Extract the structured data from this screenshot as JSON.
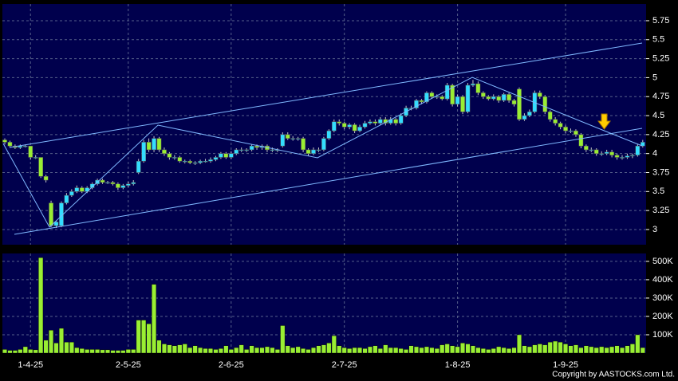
{
  "chart_data": [
    {
      "type": "candlestick",
      "categories": [
        null,
        null,
        null,
        null,
        null,
        "1-4-25",
        null,
        null,
        null,
        null,
        null,
        null,
        null,
        null,
        null,
        null,
        null,
        null,
        null,
        null,
        null,
        null,
        null,
        null,
        "2-5-25",
        null,
        null,
        null,
        null,
        null,
        null,
        null,
        null,
        null,
        null,
        null,
        null,
        null,
        null,
        null,
        null,
        null,
        null,
        null,
        "2-6-25",
        null,
        null,
        null,
        null,
        null,
        null,
        null,
        null,
        null,
        null,
        null,
        null,
        null,
        null,
        null,
        null,
        null,
        null,
        null,
        null,
        null,
        "2-7-25",
        null,
        null,
        null,
        null,
        null,
        null,
        null,
        null,
        null,
        null,
        null,
        null,
        null,
        null,
        null,
        null,
        null,
        null,
        null,
        null,
        null,
        "1-8-25",
        null,
        null,
        null,
        null,
        null,
        null,
        null,
        null,
        null,
        null,
        null,
        null,
        null,
        null,
        null,
        null,
        null,
        null,
        null,
        null,
        "1-9-25",
        null,
        null,
        null,
        null,
        null,
        null,
        null,
        null,
        null,
        null,
        null,
        null,
        null,
        null,
        null
      ],
      "open": [
        4.18,
        4.15,
        4.1,
        4.08,
        4.1,
        4.1,
        3.95,
        3.95,
        3.7,
        3.35,
        3.05,
        3.05,
        3.35,
        3.45,
        3.5,
        3.55,
        3.5,
        3.55,
        3.6,
        3.65,
        3.62,
        3.62,
        3.6,
        3.55,
        3.58,
        3.6,
        3.75,
        3.9,
        4.15,
        4.05,
        4.2,
        4.05,
        4.0,
        3.95,
        3.95,
        3.9,
        3.9,
        3.88,
        3.88,
        3.9,
        3.9,
        3.92,
        3.95,
        4.0,
        3.95,
        4.0,
        4.05,
        4.05,
        4.05,
        4.1,
        4.08,
        4.1,
        4.05,
        4.05,
        4.1,
        4.25,
        4.2,
        4.2,
        4.2,
        4.05,
        4.0,
        4.05,
        4.05,
        4.2,
        4.3,
        4.42,
        4.4,
        4.35,
        4.38,
        4.3,
        4.35,
        4.4,
        4.42,
        4.4,
        4.45,
        4.4,
        4.45,
        4.4,
        4.5,
        4.6,
        4.6,
        4.7,
        4.68,
        4.8,
        4.75,
        4.75,
        4.72,
        4.9,
        4.65,
        4.75,
        4.55,
        4.9,
        4.92,
        4.8,
        4.75,
        4.72,
        4.75,
        4.7,
        4.78,
        4.7,
        4.85,
        4.45,
        4.5,
        4.55,
        4.8,
        4.75,
        4.55,
        4.45,
        4.4,
        4.35,
        4.3,
        4.3,
        4.25,
        4.1,
        4.05,
        4.05,
        4.0,
        4.0,
        4.02,
        3.98,
        3.95,
        3.95,
        3.97,
        3.98,
        4.1
      ],
      "high": [
        4.2,
        4.17,
        4.12,
        4.12,
        4.12,
        4.1,
        3.98,
        3.95,
        3.72,
        3.38,
        3.12,
        3.37,
        3.48,
        3.53,
        3.58,
        3.57,
        3.57,
        3.62,
        3.67,
        3.67,
        3.64,
        3.64,
        3.62,
        3.6,
        3.63,
        3.65,
        3.93,
        4.18,
        4.2,
        4.23,
        4.22,
        4.08,
        4.02,
        3.98,
        3.97,
        3.92,
        3.92,
        3.9,
        3.92,
        3.93,
        3.95,
        3.97,
        4.02,
        4.02,
        4.03,
        4.07,
        4.08,
        4.07,
        4.12,
        4.12,
        4.12,
        4.12,
        4.08,
        4.07,
        4.28,
        4.28,
        4.23,
        4.22,
        4.22,
        4.07,
        4.08,
        4.08,
        4.22,
        4.32,
        4.45,
        4.45,
        4.42,
        4.4,
        4.4,
        4.38,
        4.43,
        4.45,
        4.45,
        4.48,
        4.48,
        4.48,
        4.47,
        4.53,
        4.63,
        4.63,
        4.72,
        4.72,
        4.82,
        4.82,
        4.78,
        4.77,
        4.93,
        4.92,
        4.78,
        4.77,
        4.93,
        4.97,
        4.95,
        4.82,
        4.77,
        4.78,
        4.77,
        4.8,
        4.8,
        4.72,
        4.87,
        4.53,
        4.58,
        4.83,
        4.83,
        4.77,
        4.57,
        4.48,
        4.42,
        4.37,
        4.33,
        4.32,
        4.27,
        4.12,
        4.08,
        4.07,
        4.03,
        4.05,
        4.05,
        4.0,
        3.98,
        4.0,
        4.0,
        4.13,
        4.18
      ],
      "low": [
        4.12,
        4.08,
        4.06,
        4.06,
        4.08,
        3.92,
        3.93,
        3.68,
        3.62,
        3.03,
        3.02,
        3.03,
        3.33,
        3.43,
        3.48,
        3.48,
        3.48,
        3.53,
        3.58,
        3.6,
        3.6,
        3.58,
        3.52,
        3.53,
        3.56,
        3.58,
        3.73,
        3.88,
        4.02,
        4.02,
        4.02,
        3.97,
        3.92,
        3.92,
        3.88,
        3.87,
        3.86,
        3.85,
        3.86,
        3.88,
        3.88,
        3.9,
        3.93,
        3.93,
        3.93,
        3.98,
        4.02,
        4.02,
        4.03,
        4.05,
        4.05,
        4.02,
        4.02,
        4.02,
        4.08,
        4.18,
        4.17,
        4.17,
        4.02,
        3.97,
        3.98,
        4.02,
        4.03,
        4.18,
        4.28,
        4.37,
        4.32,
        4.32,
        4.27,
        4.28,
        4.33,
        4.38,
        4.37,
        4.38,
        4.37,
        4.38,
        4.37,
        4.38,
        4.48,
        4.57,
        4.58,
        4.65,
        4.66,
        4.72,
        4.72,
        4.7,
        4.7,
        4.62,
        4.62,
        4.52,
        4.53,
        4.88,
        4.77,
        4.72,
        4.7,
        4.7,
        4.67,
        4.68,
        4.67,
        4.62,
        4.43,
        4.43,
        4.48,
        4.53,
        4.72,
        4.52,
        4.42,
        4.37,
        4.32,
        4.27,
        4.27,
        4.22,
        4.07,
        4.02,
        4.02,
        3.97,
        3.97,
        3.98,
        3.95,
        3.92,
        3.92,
        3.93,
        3.94,
        3.96,
        4.08
      ],
      "close": [
        4.15,
        4.1,
        4.08,
        4.1,
        4.1,
        3.95,
        3.95,
        3.7,
        3.65,
        3.05,
        3.1,
        3.35,
        3.45,
        3.5,
        3.55,
        3.5,
        3.55,
        3.6,
        3.65,
        3.62,
        3.62,
        3.6,
        3.55,
        3.58,
        3.6,
        3.62,
        3.9,
        4.15,
        4.05,
        4.2,
        4.05,
        4.0,
        3.95,
        3.95,
        3.9,
        3.9,
        3.88,
        3.88,
        3.9,
        3.9,
        3.92,
        3.95,
        4.0,
        3.95,
        4.0,
        4.05,
        4.05,
        4.05,
        4.1,
        4.08,
        4.1,
        4.05,
        4.05,
        4.05,
        4.25,
        4.2,
        4.2,
        4.2,
        4.05,
        4.0,
        4.05,
        4.05,
        4.2,
        4.3,
        4.42,
        4.4,
        4.35,
        4.38,
        4.3,
        4.35,
        4.4,
        4.42,
        4.4,
        4.45,
        4.4,
        4.45,
        4.4,
        4.5,
        4.6,
        4.6,
        4.7,
        4.68,
        4.8,
        4.75,
        4.75,
        4.72,
        4.9,
        4.65,
        4.75,
        4.55,
        4.9,
        4.92,
        4.8,
        4.75,
        4.72,
        4.75,
        4.7,
        4.78,
        4.7,
        4.65,
        4.45,
        4.5,
        4.55,
        4.8,
        4.75,
        4.55,
        4.45,
        4.4,
        4.35,
        4.3,
        4.3,
        4.25,
        4.1,
        4.05,
        4.05,
        4.0,
        4.0,
        4.02,
        3.98,
        3.95,
        3.95,
        3.97,
        3.98,
        4.1,
        4.15
      ],
      "up_color": "#33ddff",
      "down_color": "#99ee33",
      "ylim": [
        2.8,
        5.97
      ],
      "yticks": [
        3,
        3.25,
        3.5,
        3.75,
        4,
        4.25,
        4.5,
        4.75,
        5,
        5.25,
        5.5,
        5.75
      ],
      "grid": true
    },
    {
      "type": "bar",
      "values": [
        20000,
        15000,
        15000,
        20000,
        35000,
        20000,
        18000,
        520000,
        70000,
        125000,
        55000,
        135000,
        60000,
        60000,
        30000,
        25000,
        20000,
        20000,
        20000,
        18000,
        18000,
        15000,
        15000,
        15000,
        20000,
        20000,
        180000,
        180000,
        160000,
        375000,
        70000,
        50000,
        45000,
        40000,
        45000,
        50000,
        30000,
        40000,
        30000,
        25000,
        25000,
        20000,
        25000,
        40000,
        20000,
        30000,
        45000,
        20000,
        40000,
        30000,
        30000,
        35000,
        30000,
        20000,
        150000,
        40000,
        30000,
        35000,
        25000,
        20000,
        30000,
        40000,
        45000,
        55000,
        95000,
        40000,
        30000,
        25000,
        30000,
        30000,
        25000,
        35000,
        40000,
        25000,
        45000,
        30000,
        30000,
        25000,
        20000,
        40000,
        35000,
        30000,
        35000,
        30000,
        25000,
        45000,
        50000,
        40000,
        35000,
        55000,
        50000,
        40000,
        30000,
        25000,
        20000,
        25000,
        35000,
        30000,
        25000,
        30000,
        100000,
        40000,
        35000,
        45000,
        50000,
        45000,
        60000,
        65000,
        60000,
        50000,
        40000,
        45000,
        30000,
        40000,
        35000,
        30000,
        35000,
        30000,
        35000,
        40000,
        30000,
        40000,
        50000,
        100000,
        30000
      ],
      "color": "#99ee33",
      "ylim": [
        0,
        543000
      ],
      "yticks": [
        {
          "value": 100000,
          "label": "100K"
        },
        {
          "value": 200000,
          "label": "200K"
        },
        {
          "value": 300000,
          "label": "300K"
        },
        {
          "value": 400000,
          "label": "400K"
        },
        {
          "value": 500000,
          "label": "500K"
        }
      ],
      "grid": true
    }
  ],
  "copyright": "Copyright by AASTOCKS.com Ltd."
}
